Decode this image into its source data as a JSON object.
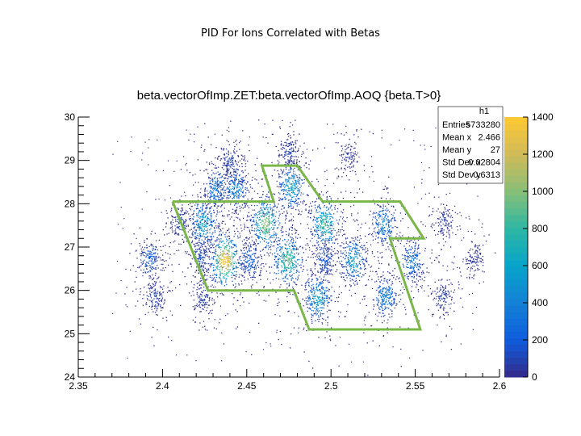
{
  "page_title": "PID For Ions Correlated with Betas",
  "chart_data": {
    "type": "heatmap",
    "title": "beta.vectorOfImp.ZET:beta.vectorOfImp.AOQ {beta.T>0}",
    "xlabel": "",
    "ylabel": "",
    "xlim": [
      2.35,
      2.6
    ],
    "ylim": [
      24,
      30
    ],
    "x_ticks": [
      "2.35",
      "2.4",
      "2.45",
      "2.5",
      "2.55",
      "2.6"
    ],
    "y_ticks": [
      "24",
      "25",
      "26",
      "27",
      "28",
      "29",
      "30"
    ],
    "grid": false,
    "stats_box": {
      "name": "h1",
      "rows": [
        {
          "label": "Entries",
          "value": "5733280"
        },
        {
          "label": "Mean x",
          "value": "2.466"
        },
        {
          "label": "Mean y",
          "value": "27"
        },
        {
          "label": "Std Dev x",
          "value": "0.02804"
        },
        {
          "label": "Std Dev y",
          "value": "0.6313"
        }
      ]
    },
    "palette": {
      "ticks": [
        "0",
        "200",
        "400",
        "600",
        "800",
        "1000",
        "1200",
        "1400"
      ],
      "max": 1400,
      "colors": [
        "#352a87",
        "#0f5cdd",
        "#1481d6",
        "#06a4ca",
        "#2eb7a4",
        "#87bf77",
        "#d1bb59",
        "#fec832"
      ]
    },
    "clusters": [
      {
        "x": 2.392,
        "y": 26.75,
        "peak": 220
      },
      {
        "x": 2.395,
        "y": 25.85,
        "peak": 120
      },
      {
        "x": 2.422,
        "y": 26.8,
        "peak": 150
      },
      {
        "x": 2.424,
        "y": 25.85,
        "peak": 100
      },
      {
        "x": 2.424,
        "y": 27.55,
        "peak": 650
      },
      {
        "x": 2.432,
        "y": 28.35,
        "peak": 420
      },
      {
        "x": 2.437,
        "y": 26.7,
        "peak": 1400
      },
      {
        "x": 2.443,
        "y": 28.35,
        "peak": 460
      },
      {
        "x": 2.452,
        "y": 26.7,
        "peak": 250
      },
      {
        "x": 2.461,
        "y": 27.55,
        "peak": 1050
      },
      {
        "x": 2.474,
        "y": 26.7,
        "peak": 950
      },
      {
        "x": 2.476,
        "y": 28.4,
        "peak": 650
      },
      {
        "x": 2.492,
        "y": 25.85,
        "peak": 650
      },
      {
        "x": 2.496,
        "y": 27.55,
        "peak": 850
      },
      {
        "x": 2.496,
        "y": 26.7,
        "peak": 200
      },
      {
        "x": 2.513,
        "y": 26.7,
        "peak": 600
      },
      {
        "x": 2.531,
        "y": 27.55,
        "peak": 450
      },
      {
        "x": 2.532,
        "y": 25.85,
        "peak": 420
      },
      {
        "x": 2.548,
        "y": 26.7,
        "peak": 380
      },
      {
        "x": 2.566,
        "y": 25.85,
        "peak": 100
      },
      {
        "x": 2.567,
        "y": 27.6,
        "peak": 80
      },
      {
        "x": 2.585,
        "y": 26.75,
        "peak": 60
      },
      {
        "x": 2.41,
        "y": 27.55,
        "peak": 120
      },
      {
        "x": 2.44,
        "y": 29.0,
        "peak": 120
      },
      {
        "x": 2.475,
        "y": 29.2,
        "peak": 110
      },
      {
        "x": 2.51,
        "y": 29.1,
        "peak": 60
      }
    ],
    "gate_polygon": [
      [
        2.406,
        28.05
      ],
      [
        2.466,
        28.05
      ],
      [
        2.459,
        28.88
      ],
      [
        2.48,
        28.88
      ],
      [
        2.495,
        28.05
      ],
      [
        2.541,
        28.05
      ],
      [
        2.555,
        27.2
      ],
      [
        2.535,
        27.2
      ],
      [
        2.553,
        25.1
      ],
      [
        2.487,
        25.1
      ],
      [
        2.478,
        26.0
      ],
      [
        2.427,
        26.0
      ],
      [
        2.406,
        28.05
      ]
    ],
    "gate_color": "#7ab648"
  }
}
